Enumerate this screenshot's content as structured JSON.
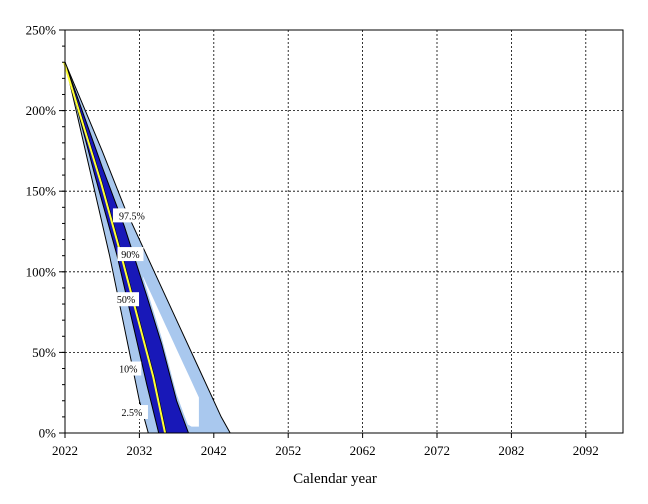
{
  "chart_data": {
    "type": "area",
    "title": "",
    "xlabel": "Calendar year",
    "ylabel": "",
    "xlim": [
      2022,
      2097
    ],
    "ylim": [
      0,
      250
    ],
    "x_ticks": [
      2022,
      2032,
      2042,
      2052,
      2062,
      2072,
      2082,
      2092
    ],
    "x_tick_labels": [
      "2022",
      "2032",
      "2042",
      "2052",
      "2062",
      "2072",
      "2082",
      "2092"
    ],
    "y_ticks": [
      0,
      50,
      100,
      150,
      200,
      250
    ],
    "y_tick_labels": [
      "0%",
      "50%",
      "100%",
      "150%",
      "200%",
      "250%"
    ],
    "grid": true,
    "start": {
      "year": 2022,
      "value": 230
    },
    "fan": {
      "outer_band_color": "#a9c8ee",
      "mid_band_color": "#1818b8",
      "median_color": "#ffff33",
      "percentiles": [
        {
          "label": "97.5%",
          "points": [
            [
              2022,
              230
            ],
            [
              2027,
              175
            ],
            [
              2030,
              140
            ],
            [
              2034,
              100
            ],
            [
              2037,
              70
            ],
            [
              2040,
              40
            ],
            [
              2043,
              10
            ],
            [
              2044.2,
              0
            ]
          ]
        },
        {
          "label": "90%",
          "points": [
            [
              2022,
              230
            ],
            [
              2027,
              165
            ],
            [
              2030,
              128
            ],
            [
              2033,
              85
            ],
            [
              2035,
              55
            ],
            [
              2037,
              20
            ],
            [
              2038.6,
              0
            ]
          ]
        },
        {
          "label": "50%",
          "points": [
            [
              2022,
              230
            ],
            [
              2027,
              155
            ],
            [
              2030,
              105
            ],
            [
              2032,
              70
            ],
            [
              2034,
              35
            ],
            [
              2035.6,
              0
            ]
          ]
        },
        {
          "label": "10%",
          "points": [
            [
              2022,
              230
            ],
            [
              2026,
              160
            ],
            [
              2029,
              110
            ],
            [
              2031,
              70
            ],
            [
              2033,
              30
            ],
            [
              2034.6,
              0
            ]
          ]
        },
        {
          "label": "2.5%",
          "points": [
            [
              2022,
              230
            ],
            [
              2025,
              170
            ],
            [
              2028,
              110
            ],
            [
              2030,
              65
            ],
            [
              2032,
              20
            ],
            [
              2033.2,
              0
            ]
          ]
        }
      ]
    },
    "labels": [
      {
        "text": "97.5%",
        "x": 2031,
        "y": 135
      },
      {
        "text": "90%",
        "x": 2030.8,
        "y": 111
      },
      {
        "text": "50%",
        "x": 2030.2,
        "y": 83
      },
      {
        "text": "10%",
        "x": 2030.5,
        "y": 40
      },
      {
        "text": "2.5%",
        "x": 2031,
        "y": 13
      }
    ]
  }
}
